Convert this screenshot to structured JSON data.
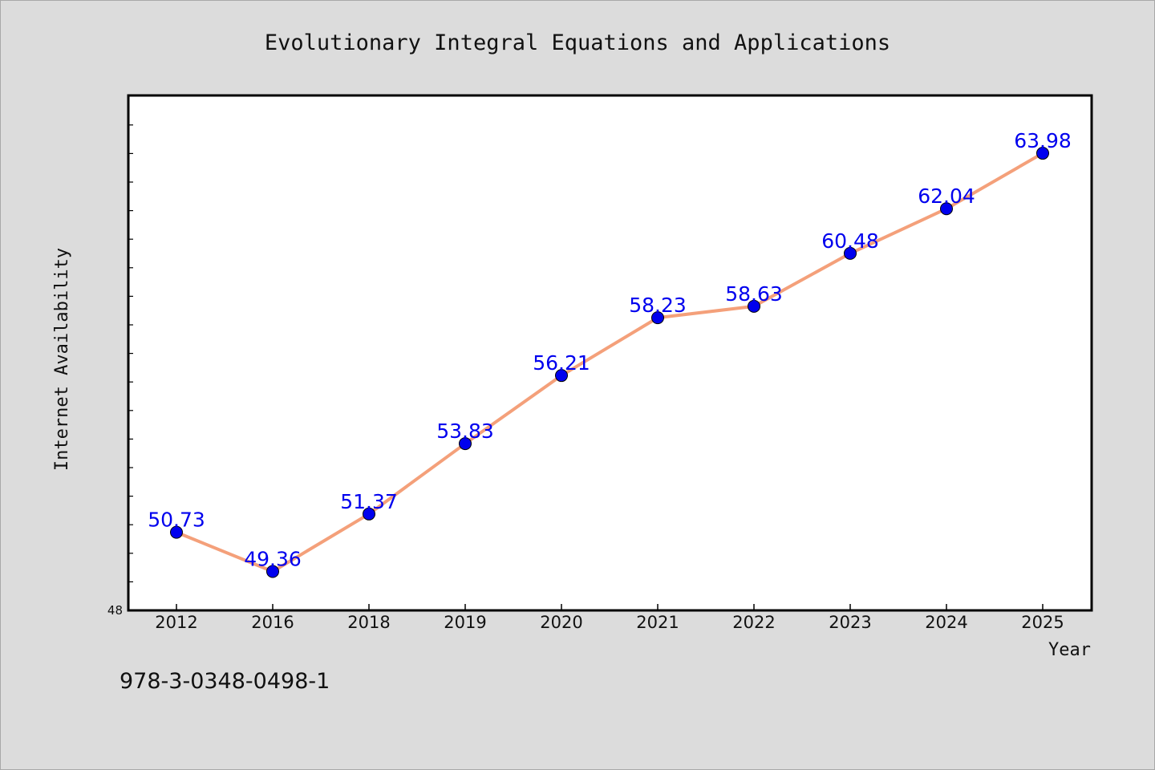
{
  "chart_data": {
    "type": "line",
    "title": "Evolutionary Integral Equations and Applications",
    "xlabel": "Year",
    "ylabel": "Internet Availability",
    "categories": [
      "2012",
      "2016",
      "2018",
      "2019",
      "2020",
      "2021",
      "2022",
      "2023",
      "2024",
      "2025"
    ],
    "series": [
      {
        "values": [
          50.73,
          49.36,
          51.37,
          53.83,
          56.21,
          58.23,
          58.63,
          60.48,
          62.04,
          63.98
        ]
      }
    ],
    "data_labels": [
      "50.73",
      "49.36",
      "51.37",
      "53.83",
      "56.21",
      "58.23",
      "58.63",
      "60.48",
      "62.04",
      "63.98"
    ],
    "ylim": [
      48,
      66
    ],
    "y_tick_label": "48",
    "grid": false,
    "legend": "none",
    "colors": {
      "line": "#f4a07a",
      "marker": "#0000ee",
      "label": "#0000ee",
      "plot_background": "#ffffff",
      "page_background": "#dcdcdc"
    }
  },
  "footer": {
    "code": "978-3-0348-0498-1"
  }
}
